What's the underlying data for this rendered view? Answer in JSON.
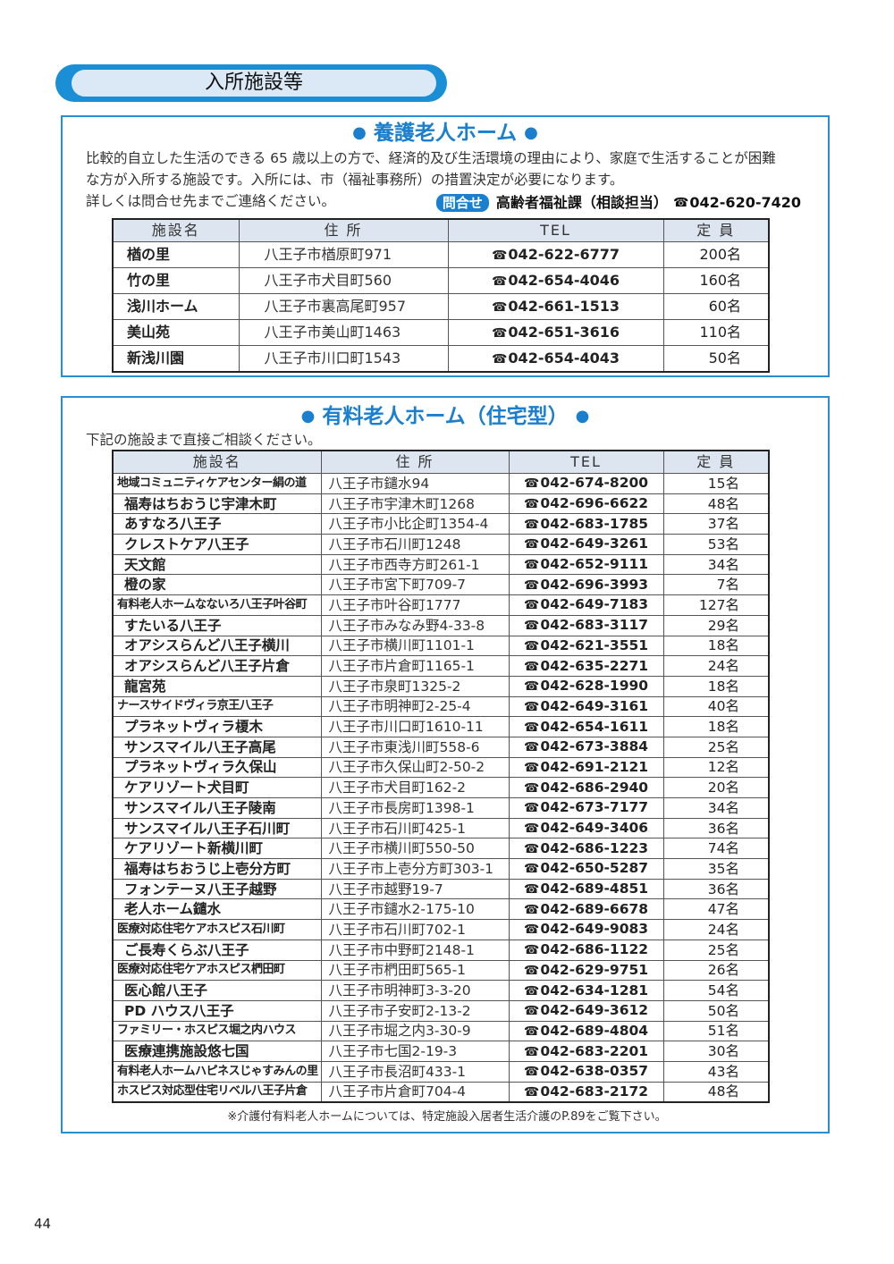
{
  "section_title": "入所施設等",
  "yogo": {
    "title": "養護老人ホーム",
    "desc_lines": [
      "比較的自立した生活のできる 65 歳以上の方で、経済的及び生活環境の理由により、家庭で生活することが困難",
      "な方が入所する施設です。入所には、市（福祉事務所）の措置決定が必要になります。",
      "詳しくは問合せ先までご連絡ください。"
    ],
    "contact_badge": "問合せ",
    "contact_dept": "高齢者福祉課（相談担当）",
    "contact_tel": "042-620-7420",
    "headers": [
      "施設名",
      "住 所",
      "TEL",
      "定 員"
    ],
    "rows": [
      [
        "楢の里",
        "八王子市楢原町971",
        "042-622-6777",
        "200名"
      ],
      [
        "竹の里",
        "八王子市犬目町560",
        "042-654-4046",
        "160名"
      ],
      [
        "浅川ホーム",
        "八王子市裏高尾町957",
        "042-661-1513",
        "60名"
      ],
      [
        "美山苑",
        "八王子市美山町1463",
        "042-651-3616",
        "110名"
      ],
      [
        "新浅川園",
        "八王子市川口町1543",
        "042-654-4043",
        "50名"
      ]
    ]
  },
  "yuryo": {
    "title": "有料老人ホーム（住宅型）",
    "desc": "下記の施設まで直接ご相談ください。",
    "headers": [
      "施設名",
      "住 所",
      "TEL",
      "定 員"
    ],
    "rows": [
      [
        "地域コミュニティケアセンター絹の道",
        "八王子市鑓水94",
        "042-674-8200",
        "15名"
      ],
      [
        "福寿はちおうじ宇津木町",
        "八王子市宇津木町1268",
        "042-696-6622",
        "48名"
      ],
      [
        "あすなろ八王子",
        "八王子市小比企町1354-4",
        "042-683-1785",
        "37名"
      ],
      [
        "クレストケア八王子",
        "八王子市石川町1248",
        "042-649-3261",
        "53名"
      ],
      [
        "天文館",
        "八王子市西寺方町261-1",
        "042-652-9111",
        "34名"
      ],
      [
        "橙の家",
        "八王子市宮下町709-7",
        "042-696-3993",
        "7名"
      ],
      [
        "有料老人ホームなないろ八王子叶谷町",
        "八王子市叶谷町1777",
        "042-649-7183",
        "127名"
      ],
      [
        "すたいる八王子",
        "八王子市みなみ野4-33-8",
        "042-683-3117",
        "29名"
      ],
      [
        "オアシスらんど八王子横川",
        "八王子市横川町1101-1",
        "042-621-3551",
        "18名"
      ],
      [
        "オアシスらんど八王子片倉",
        "八王子市片倉町1165-1",
        "042-635-2271",
        "24名"
      ],
      [
        "龍宮苑",
        "八王子市泉町1325-2",
        "042-628-1990",
        "18名"
      ],
      [
        "ナースサイドヴィラ京王八王子",
        "八王子市明神町2-25-4",
        "042-649-3161",
        "40名"
      ],
      [
        "プラネットヴィラ榎木",
        "八王子市川口町1610-11",
        "042-654-1611",
        "18名"
      ],
      [
        "サンスマイル八王子高尾",
        "八王子市東浅川町558-6",
        "042-673-3884",
        "25名"
      ],
      [
        "プラネットヴィラ久保山",
        "八王子市久保山町2-50-2",
        "042-691-2121",
        "12名"
      ],
      [
        "ケアリゾート犬目町",
        "八王子市犬目町162-2",
        "042-686-2940",
        "20名"
      ],
      [
        "サンスマイル八王子陵南",
        "八王子市長房町1398-1",
        "042-673-7177",
        "34名"
      ],
      [
        "サンスマイル八王子石川町",
        "八王子市石川町425-1",
        "042-649-3406",
        "36名"
      ],
      [
        "ケアリゾート新横川町",
        "八王子市横川町550-50",
        "042-686-1223",
        "74名"
      ],
      [
        "福寿はちおうじ上壱分方町",
        "八王子市上壱分方町303-1",
        "042-650-5287",
        "35名"
      ],
      [
        "フォンテーヌ八王子越野",
        "八王子市越野19-7",
        "042-689-4851",
        "36名"
      ],
      [
        "老人ホーム鑓水",
        "八王子市鑓水2-175-10",
        "042-689-6678",
        "47名"
      ],
      [
        "医療対応住宅ケアホスピス石川町",
        "八王子市石川町702-1",
        "042-649-9083",
        "24名"
      ],
      [
        "ご長寿くらぶ八王子",
        "八王子市中野町2148-1",
        "042-686-1122",
        "25名"
      ],
      [
        "医療対応住宅ケアホスピス椚田町",
        "八王子市椚田町565-1",
        "042-629-9751",
        "26名"
      ],
      [
        "医心館八王子",
        "八王子市明神町3-3-20",
        "042-634-1281",
        "54名"
      ],
      [
        "PD ハウス八王子",
        "八王子市子安町2-13-2",
        "042-649-3612",
        "50名"
      ],
      [
        "ファミリー・ホスピス堀之内ハウス",
        "八王子市堀之内3-30-9",
        "042-689-4804",
        "51名"
      ],
      [
        "医療連携施設悠七国",
        "八王子市七国2-19-3",
        "042-683-2201",
        "30名"
      ],
      [
        "有料老人ホームハピネスじゃすみんの里",
        "八王子市長沼町433-1",
        "042-638-0357",
        "43名"
      ],
      [
        "ホスピス対応型住宅リベル八王子片倉",
        "八王子市片倉町704-4",
        "042-683-2172",
        "48名"
      ]
    ],
    "note": "※介護付有料老人ホームについては、特定施設入居者生活介護のP.89をご覧下さい。"
  },
  "page_number": "44",
  "colors": {
    "accent": "#1a7fcf",
    "header_fill": "#dde6f0",
    "pill_fill": "#dbe9f7"
  },
  "icons": {
    "phone": "phone-icon"
  }
}
